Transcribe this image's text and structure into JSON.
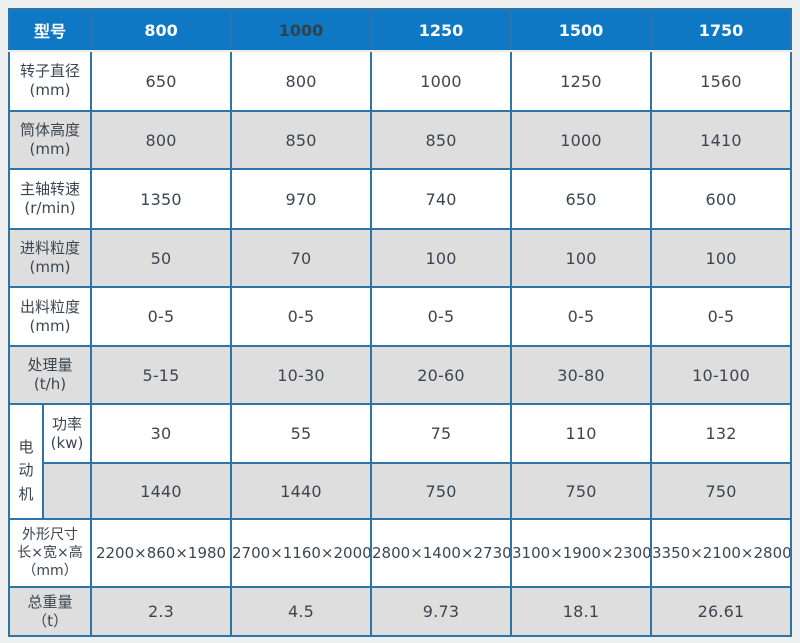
{
  "colors": {
    "page_bg": "#edf0ef",
    "header_bg": "#0f78c5",
    "header_text": "#ffffff",
    "border": "#2e74a6",
    "row_bg": "#ffffff",
    "row_alt_bg": "#dedede",
    "text": "#3c4650"
  },
  "table": {
    "header": {
      "label": "型号",
      "models": [
        "800",
        "1000",
        "1250",
        "1500",
        "1750"
      ]
    },
    "rows": [
      {
        "label": "转子直径\n(mm)",
        "values": [
          "650",
          "800",
          "1000",
          "1250",
          "1560"
        ]
      },
      {
        "label": "筒体高度\n(mm)",
        "values": [
          "800",
          "850",
          "850",
          "1000",
          "1410"
        ]
      },
      {
        "label": "主轴转速\n(r/min)",
        "values": [
          "1350",
          "970",
          "740",
          "650",
          "600"
        ]
      },
      {
        "label": "进料粒度\n(mm)",
        "values": [
          "50",
          "70",
          "100",
          "100",
          "100"
        ]
      },
      {
        "label": "出料粒度\n(mm)",
        "values": [
          "0-5",
          "0-5",
          "0-5",
          "0-5",
          "0-5"
        ]
      },
      {
        "label": "处理量\n(t/h)",
        "values": [
          "5-15",
          "10-30",
          "20-60",
          "30-80",
          "10-100"
        ]
      }
    ],
    "motor": {
      "group_label": "电动机",
      "power": {
        "label": "功率\n(kw)",
        "values": [
          "30",
          "55",
          "75",
          "110",
          "132"
        ]
      },
      "speed": {
        "label": "",
        "values": [
          "1440",
          "1440",
          "750",
          "750",
          "750"
        ]
      }
    },
    "dimensions": {
      "label": "外形尺寸\n长×宽×高\n（mm）",
      "values": [
        "2200×860×1980",
        "2700×1160×2000",
        "2800×1400×2730",
        "3100×1900×2300",
        "3350×2100×2800"
      ]
    },
    "weight": {
      "label": "总重量\n（t）",
      "values": [
        "2.3",
        "4.5",
        "9.73",
        "18.1",
        "26.61"
      ]
    }
  }
}
